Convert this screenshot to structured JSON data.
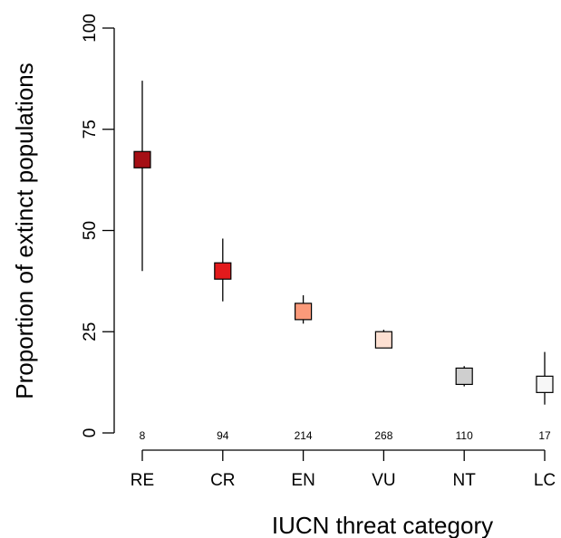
{
  "chart_data": {
    "type": "scatter",
    "title": "",
    "xlabel": "IUCN threat category",
    "ylabel": "Proportion of extinct populations",
    "ylim": [
      0,
      100
    ],
    "yticks": [
      "0",
      "25",
      "50",
      "75",
      "100"
    ],
    "grid": false,
    "legend": "none",
    "categories": [
      "RE",
      "CR",
      "EN",
      "VU",
      "NT",
      "LC"
    ],
    "values": [
      67.5,
      40,
      30,
      23,
      14,
      12
    ],
    "error_low": [
      40,
      32.5,
      27,
      21,
      11.5,
      7
    ],
    "error_high": [
      87,
      48,
      34,
      25.5,
      16.5,
      20
    ],
    "sample_sizes": [
      "8",
      "94",
      "214",
      "268",
      "110",
      "17"
    ],
    "colors": [
      "#a50f15",
      "#e31a1c",
      "#fb9a7a",
      "#fde0d2",
      "#cfcfcf",
      "#f7f7f7"
    ]
  }
}
